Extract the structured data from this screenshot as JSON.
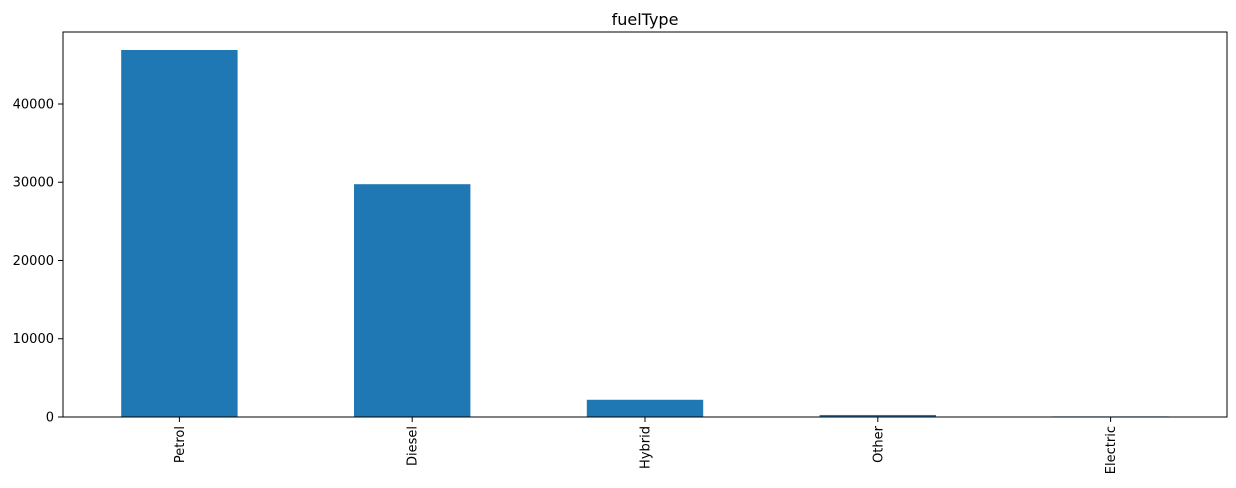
{
  "chart_data": {
    "type": "bar",
    "title": "fuelType",
    "xlabel": "",
    "ylabel": "",
    "categories": [
      "Petrol",
      "Diesel",
      "Hybrid",
      "Other",
      "Electric"
    ],
    "values": [
      46900,
      29750,
      2200,
      260,
      10
    ],
    "ylim": [
      0,
      49200
    ],
    "yticks": [
      0,
      10000,
      20000,
      30000,
      40000
    ],
    "ytick_labels": [
      "0",
      "10000",
      "20000",
      "30000",
      "40000"
    ],
    "bar_color": "#1f77b4",
    "grid": false,
    "legend": false
  }
}
